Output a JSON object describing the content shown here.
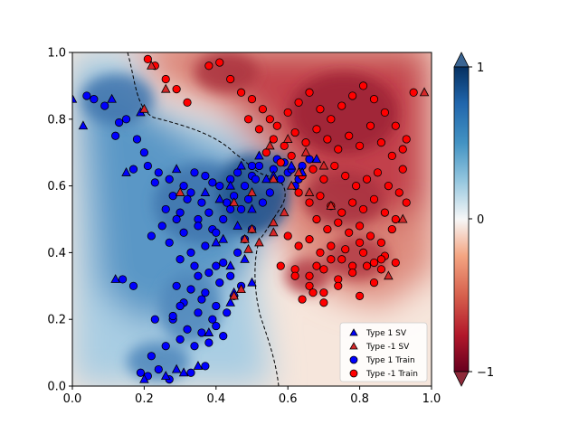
{
  "chart_data": {
    "type": "scatter",
    "title": "",
    "xlabel": "",
    "ylabel": "",
    "xlim": [
      0.0,
      1.0
    ],
    "ylim": [
      0.0,
      1.0
    ],
    "xticks": [
      "0.0",
      "0.2",
      "0.4",
      "0.6",
      "0.8",
      "1.0"
    ],
    "yticks": [
      "0.0",
      "0.2",
      "0.4",
      "0.6",
      "0.8",
      "1.0"
    ],
    "grid": false,
    "background": "filled contour of decision function, blue (+1) to red (-1), dashed zero-level boundary",
    "colorbar": {
      "ticks": [
        "1",
        "0",
        "−1"
      ],
      "range": [
        -1,
        1
      ],
      "colormap": "RdBu",
      "extend": "both"
    },
    "legend": {
      "location": "lower right",
      "entries": [
        "Type 1 SV",
        "Type -1 SV",
        "Type 1 Train",
        "Type -1 Train"
      ]
    },
    "colors": {
      "type1": "#0000ff",
      "type_neg1": "#ff0000",
      "sv_type1": "#1a1aff",
      "sv_type_neg1": "#d62728",
      "edge": "#000000"
    },
    "series": [
      {
        "name": "Type 1 Train",
        "marker": "circle",
        "color": "#0000ff",
        "x": [
          0.04,
          0.06,
          0.09,
          0.13,
          0.15,
          0.12,
          0.18,
          0.2,
          0.21,
          0.24,
          0.17,
          0.23,
          0.27,
          0.31,
          0.34,
          0.37,
          0.39,
          0.33,
          0.28,
          0.26,
          0.3,
          0.32,
          0.36,
          0.41,
          0.44,
          0.46,
          0.48,
          0.5,
          0.52,
          0.45,
          0.43,
          0.38,
          0.35,
          0.29,
          0.25,
          0.22,
          0.27,
          0.31,
          0.35,
          0.39,
          0.42,
          0.47,
          0.53,
          0.55,
          0.58,
          0.6,
          0.62,
          0.64,
          0.57,
          0.51,
          0.49,
          0.44,
          0.4,
          0.37,
          0.33,
          0.3,
          0.34,
          0.38,
          0.42,
          0.46,
          0.5,
          0.48,
          0.44,
          0.41,
          0.37,
          0.33,
          0.29,
          0.36,
          0.4,
          0.45,
          0.47,
          0.43,
          0.39,
          0.35,
          0.31,
          0.28,
          0.32,
          0.36,
          0.4,
          0.3,
          0.34,
          0.38,
          0.42,
          0.26,
          0.22,
          0.19,
          0.21,
          0.24,
          0.27,
          0.33,
          0.37,
          0.14,
          0.17,
          0.23,
          0.28,
          0.3,
          0.35,
          0.4,
          0.5,
          0.56,
          0.59,
          0.61,
          0.63,
          0.66
        ],
        "y": [
          0.87,
          0.86,
          0.84,
          0.79,
          0.8,
          0.75,
          0.74,
          0.7,
          0.66,
          0.64,
          0.65,
          0.61,
          0.62,
          0.6,
          0.64,
          0.63,
          0.61,
          0.58,
          0.57,
          0.53,
          0.52,
          0.56,
          0.55,
          0.6,
          0.62,
          0.64,
          0.6,
          0.63,
          0.66,
          0.57,
          0.55,
          0.52,
          0.5,
          0.5,
          0.48,
          0.45,
          0.43,
          0.46,
          0.48,
          0.47,
          0.5,
          0.53,
          0.55,
          0.58,
          0.62,
          0.64,
          0.6,
          0.66,
          0.68,
          0.62,
          0.56,
          0.53,
          0.46,
          0.42,
          0.4,
          0.38,
          0.36,
          0.34,
          0.37,
          0.4,
          0.47,
          0.44,
          0.33,
          0.31,
          0.28,
          0.29,
          0.3,
          0.26,
          0.24,
          0.27,
          0.3,
          0.22,
          0.2,
          0.22,
          0.25,
          0.2,
          0.17,
          0.16,
          0.18,
          0.14,
          0.12,
          0.13,
          0.15,
          0.12,
          0.09,
          0.04,
          0.03,
          0.05,
          0.02,
          0.04,
          0.06,
          0.32,
          0.3,
          0.2,
          0.21,
          0.24,
          0.33,
          0.36,
          0.66,
          0.65,
          0.67,
          0.65,
          0.62,
          0.68
        ]
      },
      {
        "name": "Type -1 Train",
        "marker": "circle",
        "color": "#ff0000",
        "x": [
          0.21,
          0.23,
          0.26,
          0.29,
          0.32,
          0.38,
          0.41,
          0.44,
          0.47,
          0.5,
          0.53,
          0.55,
          0.57,
          0.6,
          0.63,
          0.66,
          0.69,
          0.72,
          0.75,
          0.78,
          0.81,
          0.84,
          0.87,
          0.9,
          0.93,
          0.49,
          0.52,
          0.56,
          0.59,
          0.62,
          0.65,
          0.68,
          0.71,
          0.74,
          0.77,
          0.8,
          0.83,
          0.86,
          0.89,
          0.92,
          0.54,
          0.58,
          0.61,
          0.64,
          0.67,
          0.7,
          0.73,
          0.76,
          0.79,
          0.82,
          0.85,
          0.88,
          0.91,
          0.63,
          0.66,
          0.69,
          0.72,
          0.75,
          0.78,
          0.81,
          0.84,
          0.87,
          0.9,
          0.68,
          0.71,
          0.74,
          0.77,
          0.8,
          0.83,
          0.86,
          0.89,
          0.93,
          0.6,
          0.63,
          0.66,
          0.69,
          0.72,
          0.75,
          0.78,
          0.81,
          0.84,
          0.87,
          0.66,
          0.7,
          0.74,
          0.78,
          0.82,
          0.86,
          0.62,
          0.66,
          0.7,
          0.74,
          0.8,
          0.84,
          0.64,
          0.67,
          0.7,
          0.58,
          0.62,
          0.68,
          0.72,
          0.76,
          0.8,
          0.86,
          0.9,
          0.92,
          0.95
        ],
        "y": [
          0.98,
          0.96,
          0.92,
          0.89,
          0.85,
          0.96,
          0.97,
          0.92,
          0.88,
          0.86,
          0.83,
          0.8,
          0.78,
          0.82,
          0.85,
          0.88,
          0.83,
          0.8,
          0.84,
          0.87,
          0.9,
          0.86,
          0.82,
          0.78,
          0.74,
          0.8,
          0.77,
          0.74,
          0.72,
          0.76,
          0.73,
          0.77,
          0.74,
          0.71,
          0.75,
          0.72,
          0.78,
          0.73,
          0.69,
          0.71,
          0.7,
          0.67,
          0.69,
          0.63,
          0.65,
          0.62,
          0.66,
          0.63,
          0.6,
          0.62,
          0.64,
          0.6,
          0.58,
          0.58,
          0.55,
          0.57,
          0.54,
          0.52,
          0.55,
          0.53,
          0.56,
          0.52,
          0.5,
          0.5,
          0.47,
          0.49,
          0.46,
          0.48,
          0.45,
          0.43,
          0.47,
          0.55,
          0.45,
          0.42,
          0.44,
          0.4,
          0.42,
          0.38,
          0.36,
          0.4,
          0.37,
          0.39,
          0.33,
          0.35,
          0.32,
          0.34,
          0.36,
          0.38,
          0.35,
          0.3,
          0.28,
          0.3,
          0.27,
          0.31,
          0.26,
          0.28,
          0.25,
          0.36,
          0.33,
          0.36,
          0.38,
          0.41,
          0.43,
          0.35,
          0.37,
          0.65,
          0.88
        ]
      },
      {
        "name": "Type 1 SV",
        "marker": "triangle",
        "color": "#0000ff",
        "x": [
          0.0,
          0.03,
          0.11,
          0.19,
          0.15,
          0.12,
          0.29,
          0.37,
          0.41,
          0.44,
          0.47,
          0.52,
          0.56,
          0.61,
          0.64,
          0.68,
          0.54,
          0.5,
          0.46,
          0.42,
          0.4,
          0.44,
          0.48,
          0.5,
          0.35,
          0.31,
          0.29,
          0.38,
          0.44,
          0.45,
          0.2,
          0.26
        ],
        "y": [
          0.86,
          0.78,
          0.86,
          0.82,
          0.64,
          0.32,
          0.65,
          0.58,
          0.56,
          0.6,
          0.66,
          0.69,
          0.63,
          0.66,
          0.64,
          0.68,
          0.62,
          0.53,
          0.48,
          0.44,
          0.43,
          0.36,
          0.38,
          0.31,
          0.06,
          0.04,
          0.05,
          0.16,
          0.25,
          0.28,
          0.02,
          0.03
        ]
      },
      {
        "name": "Type -1 SV",
        "marker": "triangle",
        "color": "#d62728",
        "x": [
          0.2,
          0.22,
          0.26,
          0.3,
          0.45,
          0.5,
          0.56,
          0.61,
          0.63,
          0.66,
          0.72,
          0.56,
          0.59,
          0.5,
          0.48,
          0.49,
          0.52,
          0.56,
          0.47,
          0.45,
          0.92,
          0.98,
          0.88,
          0.55,
          0.6,
          0.65,
          0.7
        ],
        "y": [
          0.83,
          0.96,
          0.89,
          0.58,
          0.55,
          0.58,
          0.62,
          0.6,
          0.64,
          0.58,
          0.54,
          0.49,
          0.52,
          0.47,
          0.44,
          0.41,
          0.43,
          0.46,
          0.29,
          0.27,
          0.5,
          0.88,
          0.33,
          0.72,
          0.74,
          0.7,
          0.66
        ]
      }
    ]
  }
}
